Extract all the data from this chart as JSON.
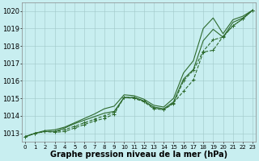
{
  "xlabel": "Graphe pression niveau de la mer (hPa)",
  "background_color": "#c8eef0",
  "grid_color": "#a0c8c8",
  "line_color": "#2d6a2d",
  "x_ticks": [
    0,
    1,
    2,
    3,
    4,
    5,
    6,
    7,
    8,
    9,
    10,
    11,
    12,
    13,
    14,
    15,
    16,
    17,
    18,
    19,
    20,
    21,
    22,
    23
  ],
  "ylim": [
    1012.5,
    1020.5
  ],
  "xlim": [
    -0.3,
    23.3
  ],
  "yticks": [
    1013,
    1014,
    1015,
    1016,
    1017,
    1018,
    1019,
    1020
  ],
  "series": [
    {
      "y": [
        1012.8,
        1013.0,
        1013.1,
        1013.05,
        1013.1,
        1013.3,
        1013.5,
        1013.7,
        1013.85,
        1014.1,
        1015.05,
        1015.05,
        1014.85,
        1014.45,
        1014.35,
        1014.75,
        1015.4,
        1016.05,
        1017.65,
        1017.75,
        1018.55,
        1019.15,
        1019.55,
        1020.05
      ],
      "linestyle": "--",
      "marker": "+"
    },
    {
      "y": [
        1012.8,
        1013.0,
        1013.1,
        1013.1,
        1013.2,
        1013.4,
        1013.6,
        1013.8,
        1014.0,
        1014.2,
        1015.05,
        1015.0,
        1014.8,
        1014.4,
        1014.35,
        1014.7,
        1016.0,
        1016.6,
        1017.7,
        1018.35,
        1018.5,
        1019.15,
        1019.55,
        1020.05
      ],
      "linestyle": "--",
      "marker": "+"
    },
    {
      "y": [
        1012.8,
        1013.0,
        1013.1,
        1013.1,
        1013.3,
        1013.55,
        1013.75,
        1013.95,
        1014.15,
        1014.25,
        1015.05,
        1015.05,
        1014.85,
        1014.5,
        1014.4,
        1014.8,
        1016.1,
        1016.65,
        1018.3,
        1018.95,
        1018.5,
        1019.35,
        1019.6,
        1020.05
      ],
      "linestyle": "-",
      "marker": null
    },
    {
      "y": [
        1012.8,
        1013.0,
        1013.15,
        1013.2,
        1013.35,
        1013.6,
        1013.85,
        1014.1,
        1014.4,
        1014.55,
        1015.2,
        1015.15,
        1014.95,
        1014.6,
        1014.5,
        1015.0,
        1016.45,
        1017.15,
        1019.0,
        1019.6,
        1018.7,
        1019.5,
        1019.7,
        1020.05
      ],
      "linestyle": "-",
      "marker": null
    }
  ],
  "marker_size": 3,
  "linewidth": 0.8,
  "xlabel_fontsize": 7,
  "ytick_fontsize": 6,
  "xtick_fontsize": 5
}
